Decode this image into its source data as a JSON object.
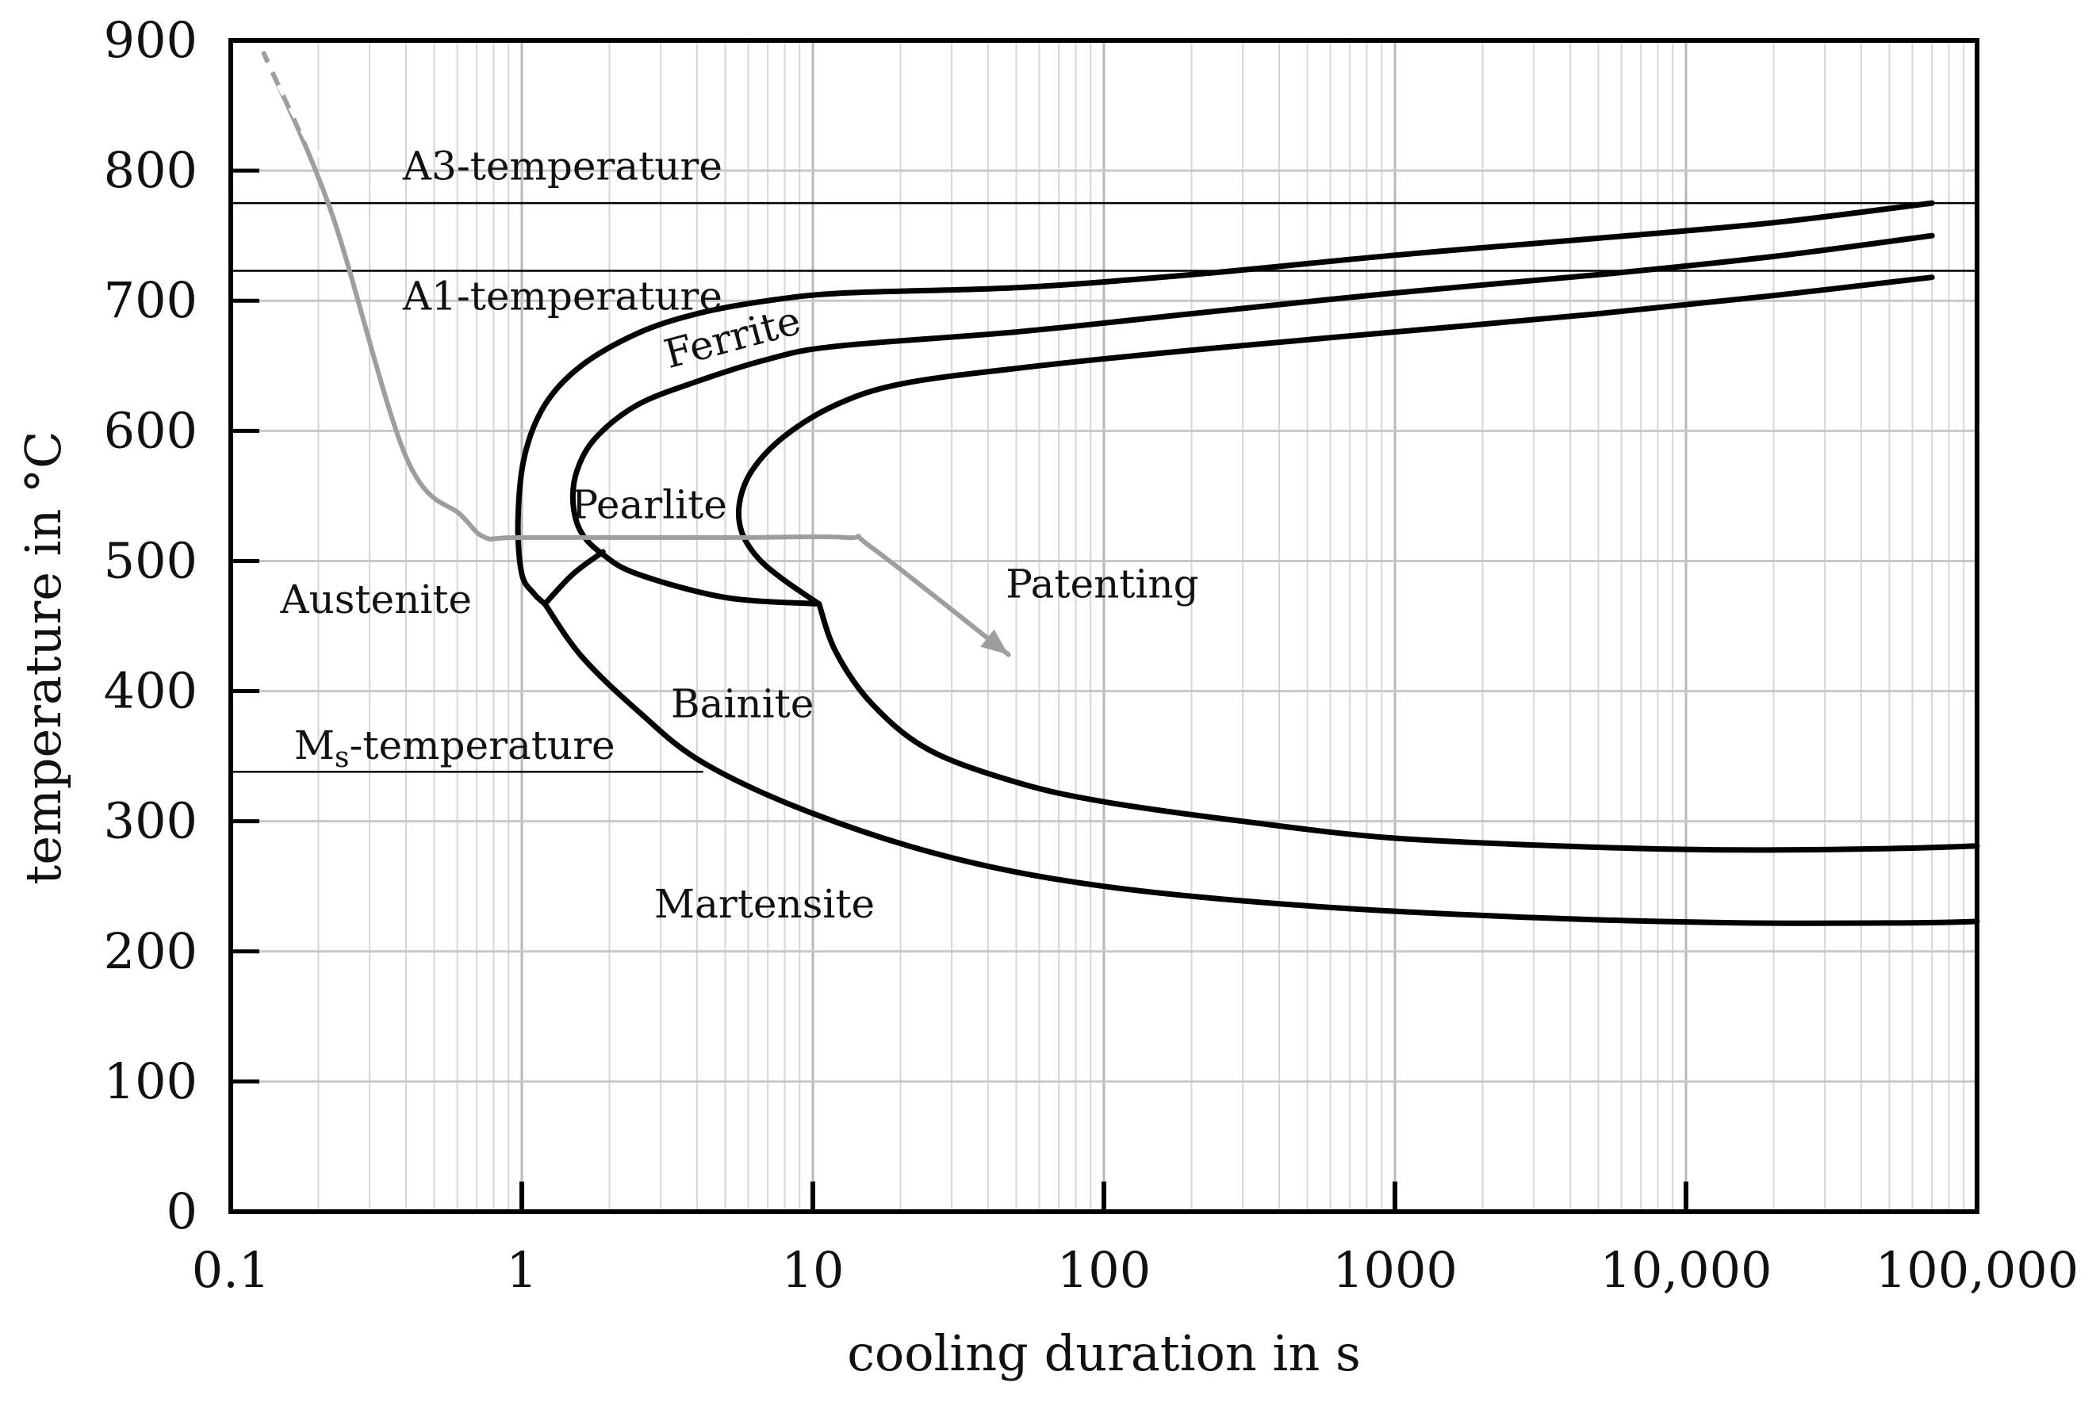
{
  "chart_data": {
    "type": "line",
    "title": "",
    "xlabel": "cooling duration in s",
    "ylabel": "temperature in °C",
    "xscale": "log",
    "xlim": [
      0.1,
      100000
    ],
    "ylim": [
      0,
      900
    ],
    "grid": true,
    "x_ticks": [
      {
        "value": 0.1,
        "label": "0.1"
      },
      {
        "value": 1,
        "label": "1"
      },
      {
        "value": 10,
        "label": "10"
      },
      {
        "value": 100,
        "label": "100"
      },
      {
        "value": 1000,
        "label": "1000"
      },
      {
        "value": 10000,
        "label": "10,000"
      },
      {
        "value": 100000,
        "label": "100,000"
      }
    ],
    "y_ticks": [
      {
        "value": 0,
        "label": "0"
      },
      {
        "value": 100,
        "label": "100"
      },
      {
        "value": 200,
        "label": "200"
      },
      {
        "value": 300,
        "label": "300"
      },
      {
        "value": 400,
        "label": "400"
      },
      {
        "value": 500,
        "label": "500"
      },
      {
        "value": 600,
        "label": "600"
      },
      {
        "value": 700,
        "label": "700"
      },
      {
        "value": 800,
        "label": "800"
      },
      {
        "value": 900,
        "label": "900"
      }
    ],
    "reference_lines": [
      {
        "name": "A3-temperature",
        "y": 775,
        "x_start": 0.1,
        "x_end": 100000
      },
      {
        "name": "A1-temperature",
        "y": 723,
        "x_start": 0.1,
        "x_end": 100000
      },
      {
        "name": "Ms-temperature",
        "y": 338,
        "x_start": 0.1,
        "x_end": 4.2
      }
    ],
    "curve_labels": [
      {
        "key": "a3",
        "main": "A",
        "sub": "3",
        "rest": "-temperature",
        "x": 0.39,
        "y": 793,
        "angle": 0
      },
      {
        "key": "a1",
        "main": "A",
        "sub": "1",
        "rest": "-temperature",
        "x": 0.39,
        "y": 693,
        "angle": 0
      },
      {
        "key": "ms",
        "main": "M",
        "sub": "s",
        "rest": "-temperature",
        "x": 0.165,
        "y": 348,
        "angle": 0
      },
      {
        "key": "ferrite",
        "main": "Ferrite",
        "sub": "",
        "rest": "",
        "x": 3.2,
        "y": 648,
        "angle": -15
      },
      {
        "key": "pearlite",
        "main": "Pearlite",
        "sub": "",
        "rest": "",
        "x": 1.48,
        "y": 533,
        "angle": 0
      },
      {
        "key": "austenite",
        "main": "Austenite",
        "sub": "",
        "rest": "",
        "x": 0.148,
        "y": 460,
        "angle": 0
      },
      {
        "key": "bainite",
        "main": "Bainite",
        "sub": "",
        "rest": "",
        "x": 3.25,
        "y": 380,
        "angle": 0
      },
      {
        "key": "martensite",
        "main": "Martensite",
        "sub": "",
        "rest": "",
        "x": 2.85,
        "y": 226,
        "angle": 0
      },
      {
        "key": "patenting",
        "main": "Patenting",
        "sub": "",
        "rest": "",
        "x": 46,
        "y": 472,
        "angle": 0
      }
    ],
    "series": [
      {
        "name": "ferrite start",
        "x": [
          70000,
          20000,
          5000,
          1000,
          200,
          50,
          13,
          7,
          4,
          2.5,
          1.6,
          1.2,
          1.02,
          0.97,
          1.0,
          1.1,
          1.2
        ],
        "y": [
          775,
          760,
          748,
          735,
          720,
          710,
          706,
          700,
          690,
          675,
          650,
          620,
          580,
          530,
          490,
          475,
          467
        ]
      },
      {
        "name": "pearlite start",
        "x": [
          70000,
          20000,
          5000,
          1000,
          200,
          50,
          12,
          7,
          4,
          2.5,
          1.8,
          1.55,
          1.5,
          1.6,
          1.9,
          2.5,
          5,
          10.5
        ],
        "y": [
          750,
          734,
          720,
          706,
          690,
          676,
          665,
          655,
          638,
          620,
          595,
          570,
          545,
          522,
          505,
          490,
          472,
          467
        ]
      },
      {
        "name": "pearlite finish",
        "x": [
          70000,
          20000,
          5000,
          1000,
          200,
          50,
          20,
          12,
          8,
          6.2,
          5.6,
          5.7,
          6.5,
          8,
          10.5
        ],
        "y": [
          718,
          704,
          690,
          676,
          662,
          648,
          636,
          620,
          596,
          570,
          545,
          522,
          502,
          485,
          467
        ]
      },
      {
        "name": "bainite boundary upper",
        "x": [
          1.2,
          1.5,
          1.9
        ],
        "y": [
          467,
          490,
          507
        ]
      },
      {
        "name": "bainite finish",
        "x": [
          10.5,
          12,
          16,
          25,
          50,
          100,
          300,
          1000,
          5000,
          15000,
          50000,
          100000
        ],
        "y": [
          467,
          430,
          390,
          355,
          330,
          315,
          300,
          287,
          280,
          278,
          279,
          281
        ]
      },
      {
        "name": "bainite start",
        "x": [
          1.2,
          1.6,
          2.5,
          4.2,
          10,
          30,
          100,
          500,
          3000,
          15000,
          60000,
          100000
        ],
        "y": [
          467,
          427,
          385,
          345,
          306,
          272,
          250,
          235,
          226,
          222,
          222,
          223
        ]
      },
      {
        "name": "patenting path",
        "color": "#9e9e9e",
        "x": [
          0.13,
          0.22,
          0.4,
          0.62,
          0.75,
          1,
          5,
          13,
          16,
          47
        ],
        "y": [
          890,
          770,
          580,
          535,
          518,
          518,
          518,
          518,
          510,
          428
        ]
      }
    ],
    "patenting_dashed_segment": {
      "x": [
        0.13,
        0.2
      ],
      "y": [
        890,
        810
      ]
    }
  }
}
